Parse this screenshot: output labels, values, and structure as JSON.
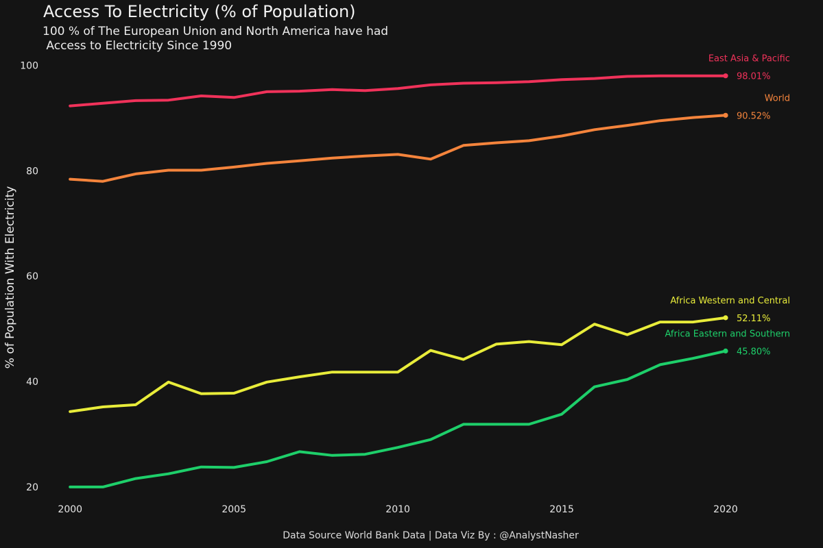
{
  "header": {
    "title": "Access To Electricity (% of Population)",
    "subtitle": "100 % of The European Union and North America have had\n Access to Electricity Since 1990"
  },
  "footer": {
    "caption": "Data Source World Bank Data | Data Viz By : @AnalystNasher"
  },
  "chart_data": {
    "type": "line",
    "title": "Access To Electricity (% of Population)",
    "subtitle": "100 % of The European Union and North America have had\n Access to Electricity Since 1990",
    "xlabel": "",
    "ylabel": "% of Population With Electricity",
    "x": [
      2000,
      2001,
      2002,
      2003,
      2004,
      2005,
      2006,
      2007,
      2008,
      2009,
      2010,
      2011,
      2012,
      2013,
      2014,
      2015,
      2016,
      2017,
      2018,
      2019,
      2020
    ],
    "xlim": [
      1999.2,
      2021.8
    ],
    "ylim": [
      17,
      102
    ],
    "xticks": [
      "2000",
      "2005",
      "2010",
      "2015",
      "2020"
    ],
    "yticks": [
      "20",
      "40",
      "60",
      "80",
      "100"
    ],
    "grid": false,
    "legend": "none (direct labels at line ends)",
    "series": [
      {
        "name": "East Asia & Pacific",
        "end_label": "98.01%",
        "color": "#f0325a",
        "values": [
          92.3,
          92.8,
          93.3,
          93.4,
          94.2,
          93.9,
          95.0,
          95.1,
          95.4,
          95.2,
          95.6,
          96.3,
          96.6,
          96.7,
          96.9,
          97.3,
          97.5,
          97.9,
          98.0,
          98.0,
          98.01
        ]
      },
      {
        "name": "World",
        "end_label": "90.52%",
        "color": "#f4843c",
        "values": [
          78.4,
          78.0,
          79.4,
          80.1,
          80.1,
          80.7,
          81.4,
          81.9,
          82.4,
          82.8,
          83.1,
          82.2,
          84.8,
          85.3,
          85.7,
          86.6,
          87.8,
          88.6,
          89.5,
          90.1,
          90.52
        ]
      },
      {
        "name": "Africa Western and Central",
        "end_label": "52.11%",
        "color": "#e8ec3a",
        "values": [
          34.3,
          35.2,
          35.6,
          39.9,
          37.7,
          37.8,
          39.9,
          40.9,
          41.8,
          41.8,
          41.8,
          45.9,
          44.2,
          47.1,
          47.6,
          47.0,
          50.9,
          48.9,
          51.3,
          51.3,
          52.11
        ]
      },
      {
        "name": "Africa Eastern and Southern",
        "end_label": "45.80%",
        "color": "#1ecf6a",
        "values": [
          20.0,
          20.0,
          21.6,
          22.5,
          23.8,
          23.7,
          24.8,
          26.7,
          26.0,
          26.2,
          27.5,
          29.0,
          31.9,
          31.9,
          31.9,
          33.8,
          39.0,
          40.4,
          43.2,
          44.4,
          45.8
        ]
      }
    ]
  }
}
